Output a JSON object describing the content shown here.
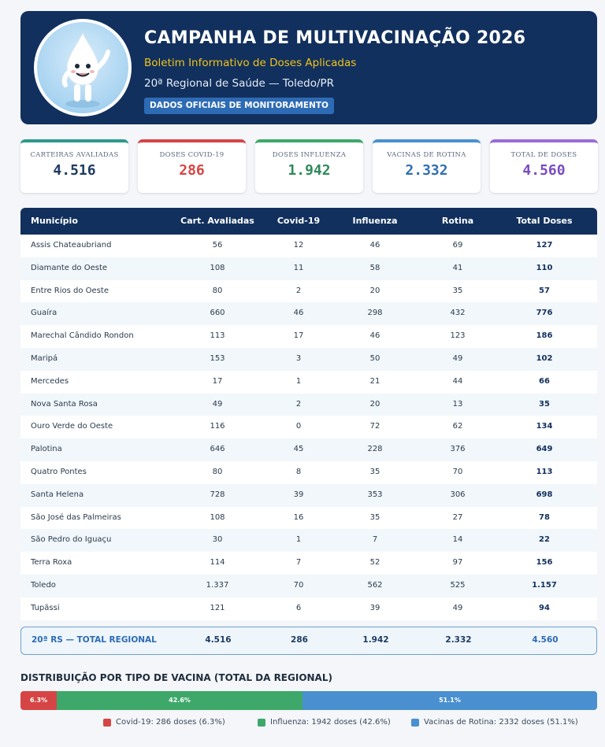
{
  "header": {
    "title": "CAMPANHA DE MULTIVACINAÇÃO 2026",
    "subtitle": "Boletim Informativo de Doses Aplicadas",
    "region": "20ª Regional de Saúde — Toledo/PR",
    "badge": "DADOS OFICIAIS DE MONITORAMENTO"
  },
  "stats": [
    {
      "label": "CARTEIRAS AVALIADAS",
      "value": "4.516",
      "color": "#2b9a8a",
      "value_color": "#1f3b63"
    },
    {
      "label": "DOSES COVID-19",
      "value": "286",
      "color": "#d64545",
      "value_color": "#d64545"
    },
    {
      "label": "DOSES INFLUENZA",
      "value": "1.942",
      "color": "#3ea86a",
      "value_color": "#2f8a5a"
    },
    {
      "label": "VACINAS DE ROTINA",
      "value": "2.332",
      "color": "#4a90d0",
      "value_color": "#2f6fb0"
    },
    {
      "label": "TOTAL DE DOSES",
      "value": "4.560",
      "color": "#9b6cd6",
      "value_color": "#7a4cc0"
    }
  ],
  "table": {
    "headers": [
      "Município",
      "Cart. Avaliadas",
      "Covid-19",
      "Influenza",
      "Rotina",
      "Total Doses"
    ],
    "rows": [
      [
        "Assis Chateaubriand",
        "56",
        "12",
        "46",
        "69",
        "127"
      ],
      [
        "Diamante do Oeste",
        "108",
        "11",
        "58",
        "41",
        "110"
      ],
      [
        "Entre Rios do Oeste",
        "80",
        "2",
        "20",
        "35",
        "57"
      ],
      [
        "Guaíra",
        "660",
        "46",
        "298",
        "432",
        "776"
      ],
      [
        "Marechal Cândido Rondon",
        "113",
        "17",
        "46",
        "123",
        "186"
      ],
      [
        "Maripá",
        "153",
        "3",
        "50",
        "49",
        "102"
      ],
      [
        "Mercedes",
        "17",
        "1",
        "21",
        "44",
        "66"
      ],
      [
        "Nova Santa Rosa",
        "49",
        "2",
        "20",
        "13",
        "35"
      ],
      [
        "Ouro Verde do Oeste",
        "116",
        "0",
        "72",
        "62",
        "134"
      ],
      [
        "Palotina",
        "646",
        "45",
        "228",
        "376",
        "649"
      ],
      [
        "Quatro Pontes",
        "80",
        "8",
        "35",
        "70",
        "113"
      ],
      [
        "Santa Helena",
        "728",
        "39",
        "353",
        "306",
        "698"
      ],
      [
        "São José das Palmeiras",
        "108",
        "16",
        "35",
        "27",
        "78"
      ],
      [
        "São Pedro do Iguaçu",
        "30",
        "1",
        "7",
        "14",
        "22"
      ],
      [
        "Terra Roxa",
        "114",
        "7",
        "52",
        "97",
        "156"
      ],
      [
        "Toledo",
        "1.337",
        "70",
        "562",
        "525",
        "1.157"
      ],
      [
        "Tupãssi",
        "121",
        "6",
        "39",
        "49",
        "94"
      ]
    ],
    "total": [
      "20ª RS — TOTAL REGIONAL",
      "4.516",
      "286",
      "1.942",
      "2.332",
      "4.560"
    ]
  },
  "distribution": {
    "title": "DISTRIBUIÇÃO POR TIPO DE VACINA (TOTAL DA REGIONAL)",
    "segments": [
      {
        "label": "6.3%",
        "percent": 6.3,
        "color": "#d64545"
      },
      {
        "label": "42.6%",
        "percent": 42.6,
        "color": "#3ea86a"
      },
      {
        "label": "51.1%",
        "percent": 51.1,
        "color": "#4a90d0"
      }
    ],
    "legend": [
      {
        "text": "Covid-19: 286 doses (6.3%)",
        "color": "#d64545"
      },
      {
        "text": "Influenza: 1942 doses (42.6%)",
        "color": "#3ea86a"
      },
      {
        "text": "Vacinas de Rotina: 2332 doses (51.1%)",
        "color": "#4a90d0"
      }
    ]
  },
  "icons": {
    "mascot": "vaccine-drop-mascot-icon"
  }
}
